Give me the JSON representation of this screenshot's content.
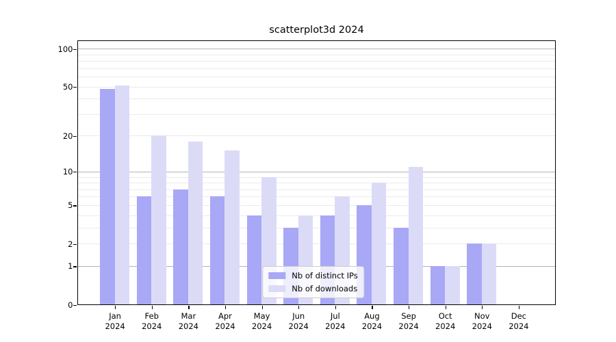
{
  "chart_data": {
    "type": "bar",
    "title": "scatterplot3d 2024",
    "categories": [
      "Jan 2024",
      "Feb 2024",
      "Mar 2024",
      "Apr 2024",
      "May 2024",
      "Jun 2024",
      "Jul 2024",
      "Aug 2024",
      "Sep 2024",
      "Oct 2024",
      "Nov 2024",
      "Dec 2024"
    ],
    "series": [
      {
        "name": "Nb of distinct IPs",
        "color": "#a8a8f6",
        "values": [
          48,
          6,
          7,
          6,
          4,
          3,
          4,
          5,
          3,
          1,
          2,
          0
        ]
      },
      {
        "name": "Nb of downloads",
        "color": "#dbdbf8",
        "values": [
          51,
          20,
          18,
          15,
          9,
          4,
          6,
          8,
          11,
          1,
          2,
          0
        ]
      }
    ],
    "xlabel": "",
    "ylabel": "",
    "yscale": "log1p",
    "ylim": [
      0,
      115
    ],
    "y_tick_labels": [
      100,
      50,
      20,
      10,
      5,
      2,
      1,
      0
    ],
    "y_major_gridlines": [
      1,
      10,
      100
    ],
    "y_minor_gridlines": [
      2,
      3,
      4,
      5,
      6,
      7,
      8,
      9,
      20,
      30,
      40,
      50,
      60,
      70,
      80,
      90
    ],
    "grid": "on",
    "legend_position": "lower center"
  },
  "colors": {
    "axis": "#000000",
    "major_grid": "#b3b3b3",
    "minor_grid": "#ebebeb",
    "legend_border": "#cccccc"
  }
}
